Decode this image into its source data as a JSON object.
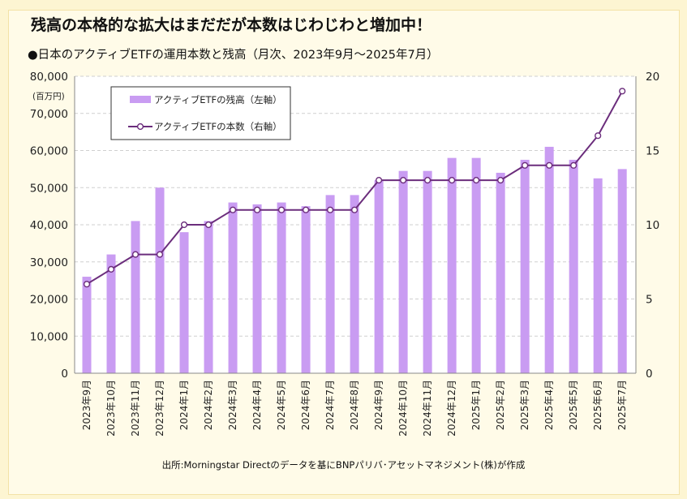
{
  "header": {
    "title": "残高の本格的な拡大はまだだが本数はじわじわと増加中！",
    "subtitle": "●日本のアクティブETFの運用本数と残高（月次、2023年9月～2025年7月）"
  },
  "footer": {
    "source": "出所:Morningstar Directのデータを基にBNPパリバ･アセットマネジメント(株)が作成"
  },
  "chart_data": {
    "type": "bar",
    "title": "●日本のアクティブETFの運用本数と残高（月次、2023年9月～2025年7月）",
    "categories": [
      "2023年9月",
      "2023年10月",
      "2023年11月",
      "2023年12月",
      "2024年1月",
      "2024年2月",
      "2024年3月",
      "2024年4月",
      "2024年5月",
      "2024年6月",
      "2024年7月",
      "2024年8月",
      "2024年9月",
      "2024年10月",
      "2024年11月",
      "2024年12月",
      "2025年1月",
      "2025年2月",
      "2025年3月",
      "2025年4月",
      "2025年5月",
      "2025年6月",
      "2025年7月"
    ],
    "ylabel": "(百万円)",
    "ylim": [
      0,
      80000
    ],
    "y_ticks": [
      "0",
      "10,000",
      "20,000",
      "30,000",
      "40,000",
      "50,000",
      "60,000",
      "70,000",
      "80,000"
    ],
    "y2lim": [
      0,
      20
    ],
    "y2_ticks": [
      "0",
      "5",
      "10",
      "15",
      "20"
    ],
    "grid": true,
    "legend_position": "top-left",
    "series": [
      {
        "name": "アクティブETFの残高（左軸）",
        "type": "bar",
        "axis": "left",
        "color": "#c99cf2",
        "values": [
          26000,
          32000,
          41000,
          50000,
          38000,
          41000,
          46000,
          45500,
          46000,
          45000,
          48000,
          48000,
          52000,
          54500,
          54500,
          58000,
          58000,
          54000,
          57500,
          61000,
          57500,
          52500,
          55000
        ]
      },
      {
        "name": "アクティブETFの本数（右軸）",
        "type": "line",
        "axis": "right",
        "color": "#6b2d7c",
        "values": [
          6,
          7,
          8,
          8,
          10,
          10,
          11,
          11,
          11,
          11,
          11,
          11,
          13,
          13,
          13,
          13,
          13,
          13,
          14,
          14,
          14,
          16,
          19
        ]
      }
    ]
  }
}
